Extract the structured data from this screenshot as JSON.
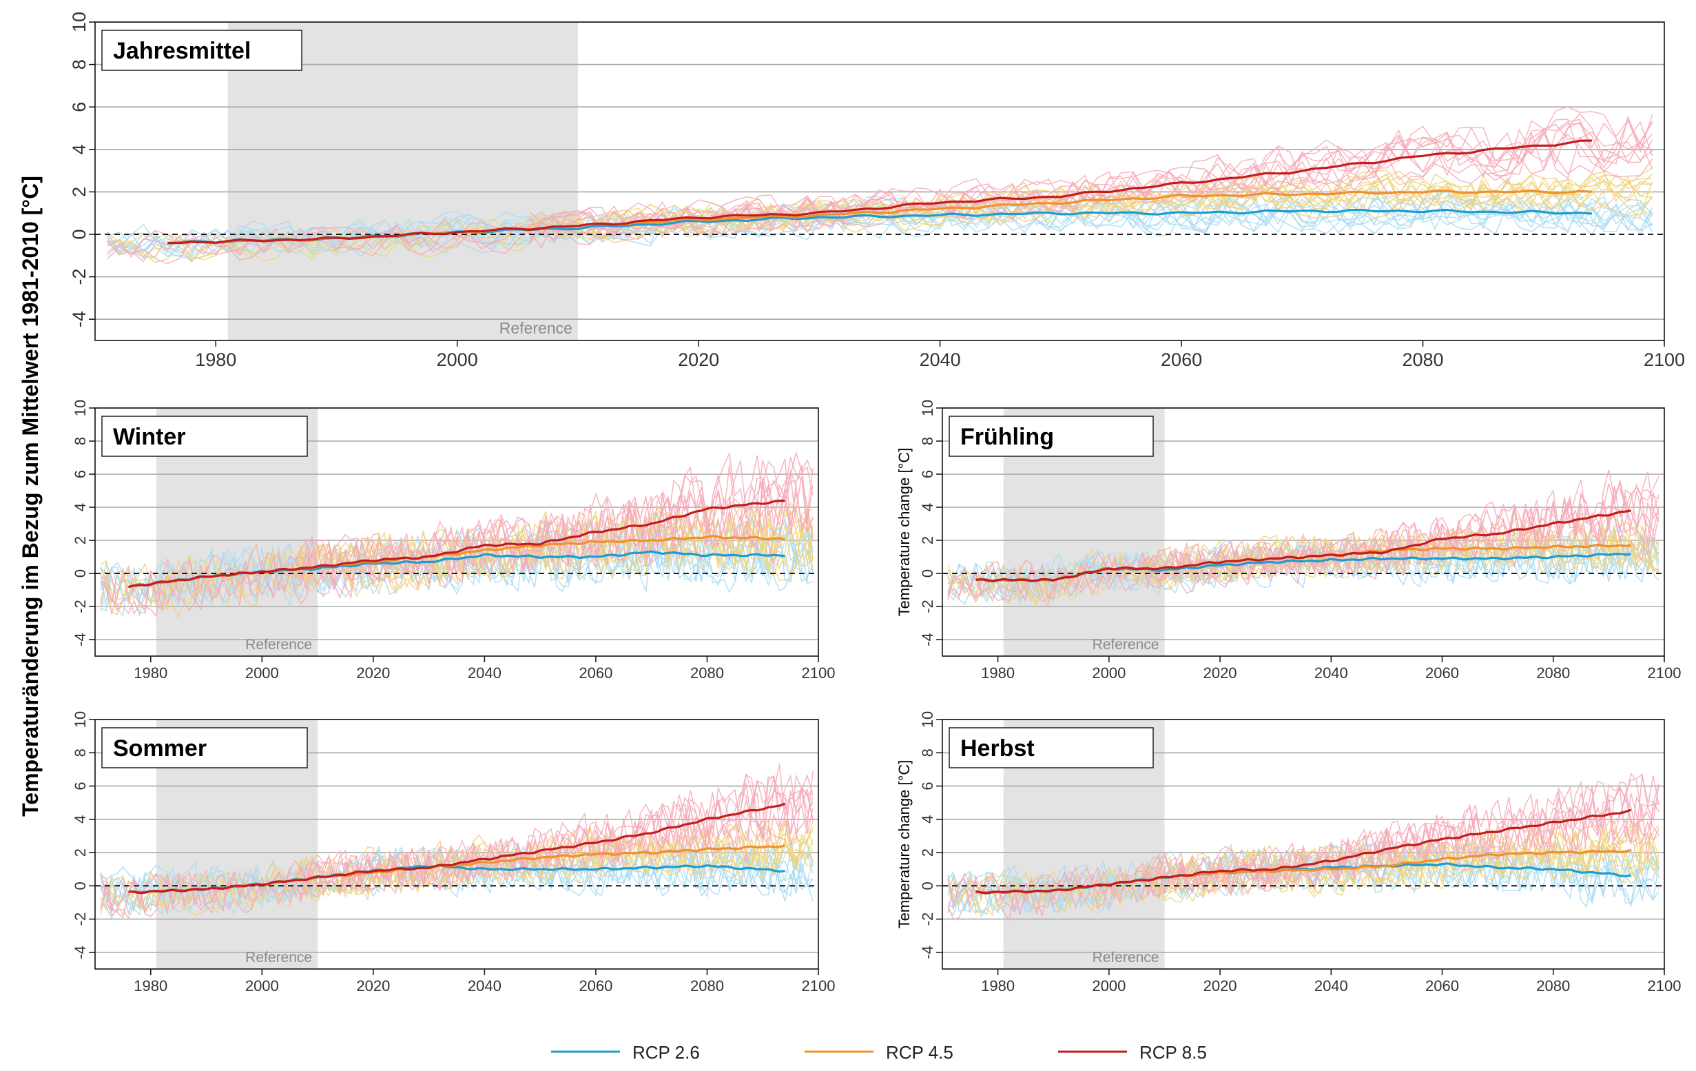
{
  "ylabel_main": "Temperaturänderung im Bezug zum Mittelwert 1981-2010 [°C]",
  "colors": {
    "rcp26_mean": "#1f9bd1",
    "rcp26_ens": "#a9dcf2",
    "rcp45_mean": "#f2902a",
    "rcp45_ens": "#f0d27a",
    "rcp85_mean": "#c21d1d",
    "rcp85_ens": "#f6a9b7",
    "reference_band": "#e3e3e3",
    "gridline": "#a8a8a8"
  },
  "legend": [
    {
      "label": "RCP 2.6",
      "color": "#1f9bd1"
    },
    {
      "label": "RCP 4.5",
      "color": "#f2902a"
    },
    {
      "label": "RCP 8.5",
      "color": "#c21d1d"
    }
  ],
  "chart_data": [
    {
      "type": "line",
      "title": "Jahresmittel",
      "ylabel": "",
      "xlim": [
        1970,
        2100
      ],
      "ylim": [
        -5,
        10
      ],
      "xticks": [
        "1980",
        "2000",
        "2020",
        "2040",
        "2060",
        "2080",
        "2100"
      ],
      "yticks": [
        "-4",
        "-2",
        "0",
        "2",
        "4",
        "6",
        "8",
        "10"
      ],
      "reference": {
        "label": "Reference",
        "start": 1981,
        "end": 2010
      },
      "zero_line": true,
      "grid": true,
      "ens_spread": 0.9,
      "series": [
        {
          "name": "RCP 2.6",
          "x": [
            1976,
            1990,
            2000,
            2010,
            2020,
            2030,
            2040,
            2050,
            2060,
            2070,
            2080,
            2094
          ],
          "y": [
            -0.4,
            -0.2,
            0.1,
            0.3,
            0.6,
            0.8,
            0.9,
            1.0,
            1.0,
            1.1,
            1.1,
            1.0
          ]
        },
        {
          "name": "RCP 4.5",
          "x": [
            1976,
            1990,
            2000,
            2010,
            2020,
            2030,
            2040,
            2050,
            2060,
            2070,
            2080,
            2094
          ],
          "y": [
            -0.4,
            -0.2,
            0.1,
            0.4,
            0.7,
            0.9,
            1.2,
            1.5,
            1.8,
            1.9,
            2.0,
            2.0
          ]
        },
        {
          "name": "RCP 8.5",
          "x": [
            1976,
            1990,
            2000,
            2010,
            2020,
            2030,
            2040,
            2050,
            2060,
            2070,
            2080,
            2094
          ],
          "y": [
            -0.4,
            -0.2,
            0.1,
            0.4,
            0.8,
            1.0,
            1.5,
            1.8,
            2.4,
            3.0,
            3.7,
            4.4
          ]
        }
      ]
    },
    {
      "type": "line",
      "title": "Winter",
      "ylabel": "",
      "xlim": [
        1970,
        2100
      ],
      "ylim": [
        -5,
        10
      ],
      "xticks": [
        "1980",
        "2000",
        "2020",
        "2040",
        "2060",
        "2080",
        "2100"
      ],
      "yticks": [
        "-4",
        "-2",
        "0",
        "2",
        "4",
        "6",
        "8",
        "10"
      ],
      "reference": {
        "label": "Reference",
        "start": 1981,
        "end": 2010
      },
      "zero_line": true,
      "grid": true,
      "ens_spread": 1.9,
      "series": [
        {
          "name": "RCP 2.6",
          "x": [
            1976,
            1990,
            2000,
            2010,
            2020,
            2030,
            2040,
            2050,
            2060,
            2070,
            2080,
            2094
          ],
          "y": [
            -0.8,
            -0.2,
            0.1,
            0.3,
            0.6,
            0.7,
            1.1,
            1.0,
            1.0,
            1.3,
            1.1,
            1.1
          ]
        },
        {
          "name": "RCP 4.5",
          "x": [
            1976,
            1990,
            2000,
            2010,
            2020,
            2030,
            2040,
            2050,
            2060,
            2070,
            2080,
            2094
          ],
          "y": [
            -0.8,
            -0.2,
            0.1,
            0.4,
            0.7,
            1.0,
            1.4,
            1.7,
            1.9,
            2.0,
            2.2,
            2.1
          ]
        },
        {
          "name": "RCP 8.5",
          "x": [
            1976,
            1990,
            2000,
            2010,
            2020,
            2030,
            2040,
            2050,
            2060,
            2070,
            2080,
            2094
          ],
          "y": [
            -0.8,
            -0.2,
            0.1,
            0.4,
            0.8,
            1.0,
            1.7,
            1.8,
            2.5,
            3.0,
            3.9,
            4.4
          ]
        }
      ]
    },
    {
      "type": "line",
      "title": "Frühling",
      "ylabel": "Temperature change [°C]",
      "xlim": [
        1970,
        2100
      ],
      "ylim": [
        -5,
        10
      ],
      "xticks": [
        "1980",
        "2000",
        "2020",
        "2040",
        "2060",
        "2080",
        "2100"
      ],
      "yticks": [
        "-4",
        "-2",
        "0",
        "2",
        "4",
        "6",
        "8",
        "10"
      ],
      "reference": {
        "label": "Reference",
        "start": 1981,
        "end": 2010
      },
      "zero_line": true,
      "grid": true,
      "ens_spread": 1.4,
      "series": [
        {
          "name": "RCP 2.6",
          "x": [
            1976,
            1990,
            2000,
            2010,
            2020,
            2030,
            2040,
            2050,
            2060,
            2070,
            2080,
            2094
          ],
          "y": [
            -0.4,
            -0.4,
            0.3,
            0.2,
            0.5,
            0.7,
            0.8,
            0.9,
            0.9,
            0.9,
            1.0,
            1.2
          ]
        },
        {
          "name": "RCP 4.5",
          "x": [
            1976,
            1990,
            2000,
            2010,
            2020,
            2030,
            2040,
            2050,
            2060,
            2070,
            2080,
            2094
          ],
          "y": [
            -0.4,
            -0.4,
            0.3,
            0.3,
            0.7,
            0.9,
            1.1,
            1.4,
            1.5,
            1.5,
            1.6,
            1.7
          ]
        },
        {
          "name": "RCP 8.5",
          "x": [
            1976,
            1990,
            2000,
            2010,
            2020,
            2030,
            2040,
            2050,
            2060,
            2070,
            2080,
            2094
          ],
          "y": [
            -0.4,
            -0.4,
            0.3,
            0.3,
            0.7,
            0.9,
            1.1,
            1.3,
            2.1,
            2.4,
            3.0,
            3.8
          ]
        }
      ]
    },
    {
      "type": "line",
      "title": "Sommer",
      "ylabel": "",
      "xlim": [
        1970,
        2100
      ],
      "ylim": [
        -5,
        10
      ],
      "xticks": [
        "1980",
        "2000",
        "2020",
        "2040",
        "2060",
        "2080",
        "2100"
      ],
      "yticks": [
        "-4",
        "-2",
        "0",
        "2",
        "4",
        "6",
        "8",
        "10"
      ],
      "reference": {
        "label": "Reference",
        "start": 1981,
        "end": 2010
      },
      "zero_line": true,
      "grid": true,
      "ens_spread": 1.5,
      "series": [
        {
          "name": "RCP 2.6",
          "x": [
            1976,
            1990,
            2000,
            2010,
            2020,
            2030,
            2040,
            2050,
            2060,
            2070,
            2080,
            2094
          ],
          "y": [
            -0.4,
            -0.2,
            0.1,
            0.5,
            0.9,
            1.2,
            1.0,
            1.0,
            1.0,
            1.1,
            1.2,
            0.9
          ]
        },
        {
          "name": "RCP 4.5",
          "x": [
            1976,
            1990,
            2000,
            2010,
            2020,
            2030,
            2040,
            2050,
            2060,
            2070,
            2080,
            2094
          ],
          "y": [
            -0.4,
            -0.2,
            0.1,
            0.5,
            0.8,
            1.1,
            1.4,
            1.7,
            1.9,
            2.0,
            2.2,
            2.4
          ]
        },
        {
          "name": "RCP 8.5",
          "x": [
            1976,
            1990,
            2000,
            2010,
            2020,
            2030,
            2040,
            2050,
            2060,
            2070,
            2080,
            2094
          ],
          "y": [
            -0.4,
            -0.2,
            0.1,
            0.5,
            0.9,
            1.1,
            1.6,
            2.1,
            2.6,
            3.2,
            4.0,
            4.9
          ]
        }
      ]
    },
    {
      "type": "line",
      "title": "Herbst",
      "ylabel": "Temperature change [°C]",
      "xlim": [
        1970,
        2100
      ],
      "ylim": [
        -5,
        10
      ],
      "xticks": [
        "1980",
        "2000",
        "2020",
        "2040",
        "2060",
        "2080",
        "2100"
      ],
      "yticks": [
        "-4",
        "-2",
        "0",
        "2",
        "4",
        "6",
        "8",
        "10"
      ],
      "reference": {
        "label": "Reference",
        "start": 1981,
        "end": 2010
      },
      "zero_line": true,
      "grid": true,
      "ens_spread": 1.5,
      "series": [
        {
          "name": "RCP 2.6",
          "x": [
            1976,
            1990,
            2000,
            2010,
            2020,
            2030,
            2040,
            2050,
            2060,
            2070,
            2080,
            2094
          ],
          "y": [
            -0.4,
            -0.3,
            0.1,
            0.5,
            0.8,
            0.9,
            1.1,
            1.2,
            1.3,
            1.1,
            1.0,
            0.6
          ]
        },
        {
          "name": "RCP 4.5",
          "x": [
            1976,
            1990,
            2000,
            2010,
            2020,
            2030,
            2040,
            2050,
            2060,
            2070,
            2080,
            2094
          ],
          "y": [
            -0.4,
            -0.3,
            0.1,
            0.5,
            0.8,
            0.9,
            1.0,
            1.2,
            1.6,
            1.9,
            2.0,
            2.1
          ]
        },
        {
          "name": "RCP 8.5",
          "x": [
            1976,
            1990,
            2000,
            2010,
            2020,
            2030,
            2040,
            2050,
            2060,
            2070,
            2080,
            2094
          ],
          "y": [
            -0.4,
            -0.3,
            0.1,
            0.5,
            0.9,
            1.0,
            1.5,
            2.2,
            2.8,
            3.3,
            3.8,
            4.5
          ]
        }
      ]
    }
  ]
}
